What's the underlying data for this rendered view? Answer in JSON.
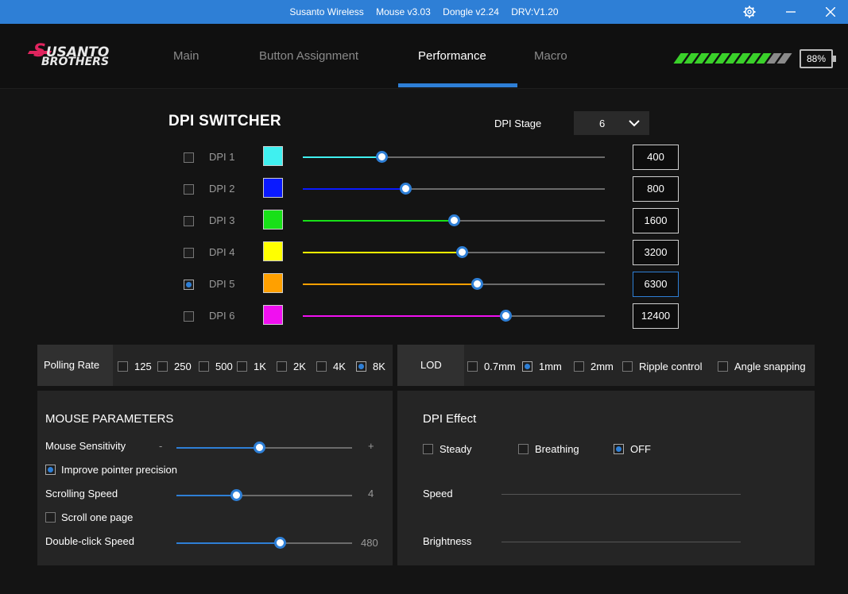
{
  "titlebar": {
    "app": "Susanto Wireless",
    "mouse": "Mouse v3.03",
    "dongle": "Dongle v2.24",
    "driver": "DRV:V1.20",
    "icons": [
      "gear-icon",
      "minimize-icon",
      "close-icon"
    ]
  },
  "logo": {
    "line1": "USANTO",
    "line1_initial": "S",
    "line2": "BROTHERS",
    "accent": "#e0245e"
  },
  "nav": {
    "tabs": [
      {
        "label": "Main"
      },
      {
        "label": "Button Assignment"
      },
      {
        "label": "Performance"
      },
      {
        "label": "Macro"
      }
    ],
    "active": "Performance"
  },
  "battery": {
    "percent_label": "88%",
    "level": 0.88,
    "stripe_color": "#3ad12a"
  },
  "dpi_switcher": {
    "title": "DPI SWITCHER",
    "stage_label": "DPI Stage",
    "stage_value": "6",
    "rows": [
      {
        "label": "DPI 1",
        "color": "#40f0f0",
        "value": "400",
        "level": 0.26,
        "checked": false
      },
      {
        "label": "DPI 2",
        "color": "#0a1aff",
        "value": "800",
        "level": 0.34,
        "checked": false
      },
      {
        "label": "DPI 3",
        "color": "#18e018",
        "value": "1600",
        "level": 0.5,
        "checked": false
      },
      {
        "label": "DPI 4",
        "color": "#ffff00",
        "value": "3200",
        "level": 0.525,
        "checked": false
      },
      {
        "label": "DPI 5",
        "color": "#ffa000",
        "value": "6300",
        "level": 0.575,
        "checked": true
      },
      {
        "label": "DPI 6",
        "color": "#f010f0",
        "value": "12400",
        "level": 0.67,
        "checked": false
      }
    ]
  },
  "polling": {
    "label": "Polling Rate",
    "options": [
      {
        "label": "125",
        "checked": false
      },
      {
        "label": "250",
        "checked": false
      },
      {
        "label": "500",
        "checked": false
      },
      {
        "label": "1K",
        "checked": false
      },
      {
        "label": "2K",
        "checked": false
      },
      {
        "label": "4K",
        "checked": false
      },
      {
        "label": "8K",
        "checked": true
      }
    ]
  },
  "lod": {
    "label": "LOD",
    "options": [
      {
        "label": "0.7mm",
        "checked": false
      },
      {
        "label": "1mm",
        "checked": true
      },
      {
        "label": "2mm",
        "checked": false
      },
      {
        "label": "Ripple control",
        "checked": false
      },
      {
        "label": "Angle snapping",
        "checked": false
      }
    ]
  },
  "mouse_params": {
    "title": "MOUSE PARAMETERS",
    "sensitivity": {
      "label": "Mouse Sensitivity",
      "minus": "-",
      "plus": "+",
      "level": 0.47
    },
    "pointer_precision": {
      "label": "Improve pointer precision",
      "checked": true
    },
    "scrolling": {
      "label": "Scrolling Speed",
      "value": "4",
      "level": 0.34
    },
    "scroll_page": {
      "label": "Scroll one page",
      "checked": false
    },
    "double_click": {
      "label": "Double-click Speed",
      "value": "480",
      "level": 0.59
    }
  },
  "dpi_effect": {
    "title": "DPI Effect",
    "options": [
      {
        "label": "Steady",
        "checked": false
      },
      {
        "label": "Breathing",
        "checked": false
      },
      {
        "label": "OFF",
        "checked": true
      }
    ],
    "speed_label": "Speed",
    "brightness_label": "Brightness"
  },
  "colors": {
    "accent": "#2e7fd6",
    "background": "#141414",
    "panel": "#252525"
  }
}
